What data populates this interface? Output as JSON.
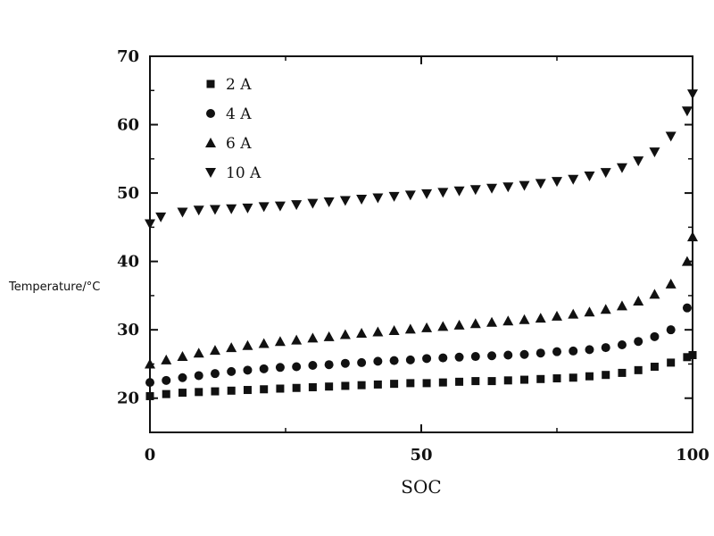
{
  "chart_data": {
    "type": "scatter",
    "xlabel": "SOC",
    "ylabel": "Temperature/°C",
    "xlim": [
      0,
      100
    ],
    "ylim": [
      15,
      70
    ],
    "xticks": [
      0,
      50,
      100
    ],
    "yticks": [
      20,
      30,
      40,
      50,
      60,
      70
    ],
    "grid": false,
    "legend_position": "top-left",
    "series": [
      {
        "name": "2 A",
        "marker": "square",
        "x": [
          0,
          3,
          6,
          9,
          12,
          15,
          18,
          21,
          24,
          27,
          30,
          33,
          36,
          39,
          42,
          45,
          48,
          51,
          54,
          57,
          60,
          63,
          66,
          69,
          72,
          75,
          78,
          81,
          84,
          87,
          90,
          93,
          96,
          99,
          100
        ],
        "y": [
          20.3,
          20.6,
          20.8,
          20.9,
          21.0,
          21.1,
          21.2,
          21.3,
          21.4,
          21.5,
          21.6,
          21.7,
          21.8,
          21.9,
          22.0,
          22.1,
          22.2,
          22.2,
          22.3,
          22.4,
          22.5,
          22.5,
          22.6,
          22.7,
          22.8,
          22.9,
          23.0,
          23.2,
          23.4,
          23.7,
          24.1,
          24.6,
          25.2,
          26.0,
          26.3
        ]
      },
      {
        "name": "4 A",
        "marker": "circle",
        "x": [
          0,
          3,
          6,
          9,
          12,
          15,
          18,
          21,
          24,
          27,
          30,
          33,
          36,
          39,
          42,
          45,
          48,
          51,
          54,
          57,
          60,
          63,
          66,
          69,
          72,
          75,
          78,
          81,
          84,
          87,
          90,
          93,
          96,
          99
        ],
        "y": [
          22.3,
          22.6,
          23.0,
          23.3,
          23.6,
          23.9,
          24.1,
          24.3,
          24.5,
          24.6,
          24.8,
          24.9,
          25.1,
          25.2,
          25.4,
          25.5,
          25.6,
          25.8,
          25.9,
          26.0,
          26.1,
          26.2,
          26.3,
          26.4,
          26.6,
          26.8,
          26.9,
          27.1,
          27.4,
          27.8,
          28.3,
          29.0,
          30.0,
          33.2
        ]
      },
      {
        "name": "6 A",
        "marker": "triangle-up",
        "x": [
          0,
          3,
          6,
          9,
          12,
          15,
          18,
          21,
          24,
          27,
          30,
          33,
          36,
          39,
          42,
          45,
          48,
          51,
          54,
          57,
          60,
          63,
          66,
          69,
          72,
          75,
          78,
          81,
          84,
          87,
          90,
          93,
          96,
          99,
          100
        ],
        "y": [
          25.0,
          25.6,
          26.1,
          26.6,
          27.0,
          27.4,
          27.7,
          28.0,
          28.3,
          28.5,
          28.8,
          29.0,
          29.3,
          29.5,
          29.7,
          29.9,
          30.1,
          30.3,
          30.5,
          30.7,
          30.9,
          31.1,
          31.3,
          31.5,
          31.7,
          32.0,
          32.3,
          32.6,
          33.0,
          33.5,
          34.2,
          35.2,
          36.7,
          40.0,
          43.6
        ]
      },
      {
        "name": "10 A",
        "marker": "triangle-down",
        "x": [
          0,
          2,
          6,
          9,
          12,
          15,
          18,
          21,
          24,
          27,
          30,
          33,
          36,
          39,
          42,
          45,
          48,
          51,
          54,
          57,
          60,
          63,
          66,
          69,
          72,
          75,
          78,
          81,
          84,
          87,
          90,
          93,
          96,
          99,
          100
        ],
        "y": [
          45.5,
          46.5,
          47.2,
          47.5,
          47.6,
          47.7,
          47.8,
          48.0,
          48.1,
          48.3,
          48.5,
          48.7,
          48.9,
          49.1,
          49.3,
          49.5,
          49.7,
          49.9,
          50.1,
          50.3,
          50.5,
          50.7,
          50.9,
          51.1,
          51.4,
          51.7,
          52.0,
          52.5,
          53.0,
          53.7,
          54.7,
          56.0,
          58.3,
          62.0,
          64.5
        ]
      }
    ]
  }
}
